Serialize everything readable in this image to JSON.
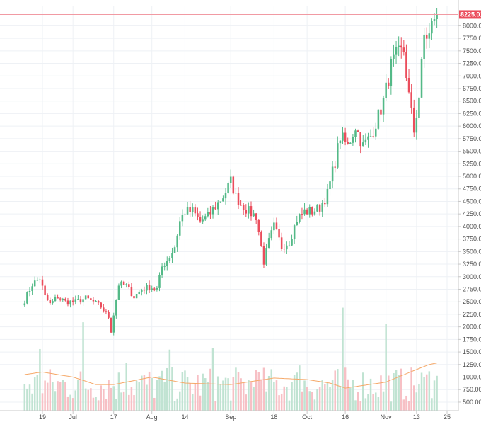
{
  "chart_data": {
    "type": "candlestick",
    "x_tick_labels": [
      "19",
      "Jul",
      "17",
      "Aug",
      "14",
      "Sep",
      "18",
      "Oct",
      "16",
      "Nov",
      "13",
      "25"
    ],
    "y_tick_labels": [
      "500.00",
      "750.00",
      "1000.00",
      "1250.00",
      "1500.00",
      "1750.00",
      "2000.00",
      "2250.00",
      "2500.00",
      "2750.00",
      "3000.00",
      "3250.00",
      "3500.00",
      "3750.00",
      "4000.00",
      "4250.00",
      "4500.00",
      "4750.00",
      "5000.00",
      "5250.00",
      "5500.00",
      "5750.00",
      "6000.00",
      "6250.00",
      "6500.00",
      "6750.00",
      "7000.00",
      "7250.00",
      "7500.00",
      "7750.00",
      "8000.00"
    ],
    "ylim": [
      330,
      8330
    ],
    "last_price": "8225.01",
    "last_price_value": 8225.01,
    "grid": true,
    "colors": {
      "up": "#53b987",
      "down": "#eb4d5c",
      "up_volume": "#c0e3d2",
      "down_volume": "#f7c0c5",
      "moving_average": "#f5a868",
      "price_line": "#f19aa3",
      "grid": "#eef1f5",
      "axis": "#c8c8c8"
    },
    "x_axis_dates": [
      "Jun 19",
      "Jul 1",
      "Jul 17",
      "Aug 1",
      "Aug 14",
      "Sep 1",
      "Sep 18",
      "Oct 1",
      "Oct 16",
      "Nov 1",
      "Nov 13",
      "Nov 25"
    ],
    "price_waypoints": [
      [
        "Jun 12",
        2530
      ],
      [
        "Jun 15",
        2850
      ],
      [
        "Jun 18",
        2970
      ],
      [
        "Jun 20",
        2600
      ],
      [
        "Jun 22",
        2450
      ],
      [
        "Jun 25",
        2600
      ],
      [
        "Jun 28",
        2500
      ],
      [
        "Jul 2",
        2500
      ],
      [
        "Jul 6",
        2570
      ],
      [
        "Jul 9",
        2500
      ],
      [
        "Jul 12",
        2400
      ],
      [
        "Jul 15",
        2200
      ],
      [
        "Jul 16",
        1920
      ],
      [
        "Jul 17",
        2250
      ],
      [
        "Jul 19",
        2850
      ],
      [
        "Jul 22",
        2820
      ],
      [
        "Jul 25",
        2600
      ],
      [
        "Jul 28",
        2750
      ],
      [
        "Jul 31",
        2800
      ],
      [
        "Aug 3",
        2750
      ],
      [
        "Aug 5",
        3200
      ],
      [
        "Aug 8",
        3400
      ],
      [
        "Aug 10",
        3600
      ],
      [
        "Aug 12",
        4100
      ],
      [
        "Aug 14",
        4300
      ],
      [
        "Aug 17",
        4300
      ],
      [
        "Aug 20",
        4100
      ],
      [
        "Aug 23",
        4200
      ],
      [
        "Aug 26",
        4400
      ],
      [
        "Aug 29",
        4600
      ],
      [
        "Sep 1",
        4900
      ],
      [
        "Sep 3",
        4600
      ],
      [
        "Sep 5",
        4450
      ],
      [
        "Sep 8",
        4300
      ],
      [
        "Sep 11",
        4200
      ],
      [
        "Sep 14",
        3300
      ],
      [
        "Sep 16",
        3700
      ],
      [
        "Sep 18",
        4000
      ],
      [
        "Sep 21",
        3600
      ],
      [
        "Sep 24",
        3700
      ],
      [
        "Sep 27",
        4150
      ],
      [
        "Sep 30",
        4300
      ],
      [
        "Oct 3",
        4300
      ],
      [
        "Oct 6",
        4380
      ],
      [
        "Oct 9",
        4650
      ],
      [
        "Oct 12",
        5300
      ],
      [
        "Oct 14",
        5800
      ],
      [
        "Oct 17",
        5600
      ],
      [
        "Oct 20",
        6000
      ],
      [
        "Oct 23",
        5600
      ],
      [
        "Oct 26",
        5800
      ],
      [
        "Oct 29",
        6200
      ],
      [
        "Oct 31",
        6500
      ],
      [
        "Nov 3",
        7200
      ],
      [
        "Nov 5",
        7400
      ],
      [
        "Nov 8",
        7500
      ],
      [
        "Nov 10",
        6600
      ],
      [
        "Nov 12",
        5900
      ],
      [
        "Nov 14",
        6600
      ],
      [
        "Nov 16",
        7800
      ],
      [
        "Nov 18",
        7800
      ],
      [
        "Nov 20",
        8200
      ],
      [
        "Nov 21",
        8225.01
      ]
    ],
    "volume_moving_average_waypoints": [
      [
        "Jun 12",
        1050
      ],
      [
        "Jun 19",
        1100
      ],
      [
        "Jul 1",
        1000
      ],
      [
        "Jul 10",
        850
      ],
      [
        "Jul 17",
        850
      ],
      [
        "Aug 1",
        1000
      ],
      [
        "Aug 14",
        880
      ],
      [
        "Sep 1",
        850
      ],
      [
        "Sep 18",
        980
      ],
      [
        "Oct 1",
        950
      ],
      [
        "Oct 10",
        880
      ],
      [
        "Oct 16",
        780
      ],
      [
        "Nov 1",
        900
      ],
      [
        "Nov 13",
        1150
      ],
      [
        "Nov 18",
        1250
      ],
      [
        "Nov 21",
        1280
      ]
    ]
  }
}
